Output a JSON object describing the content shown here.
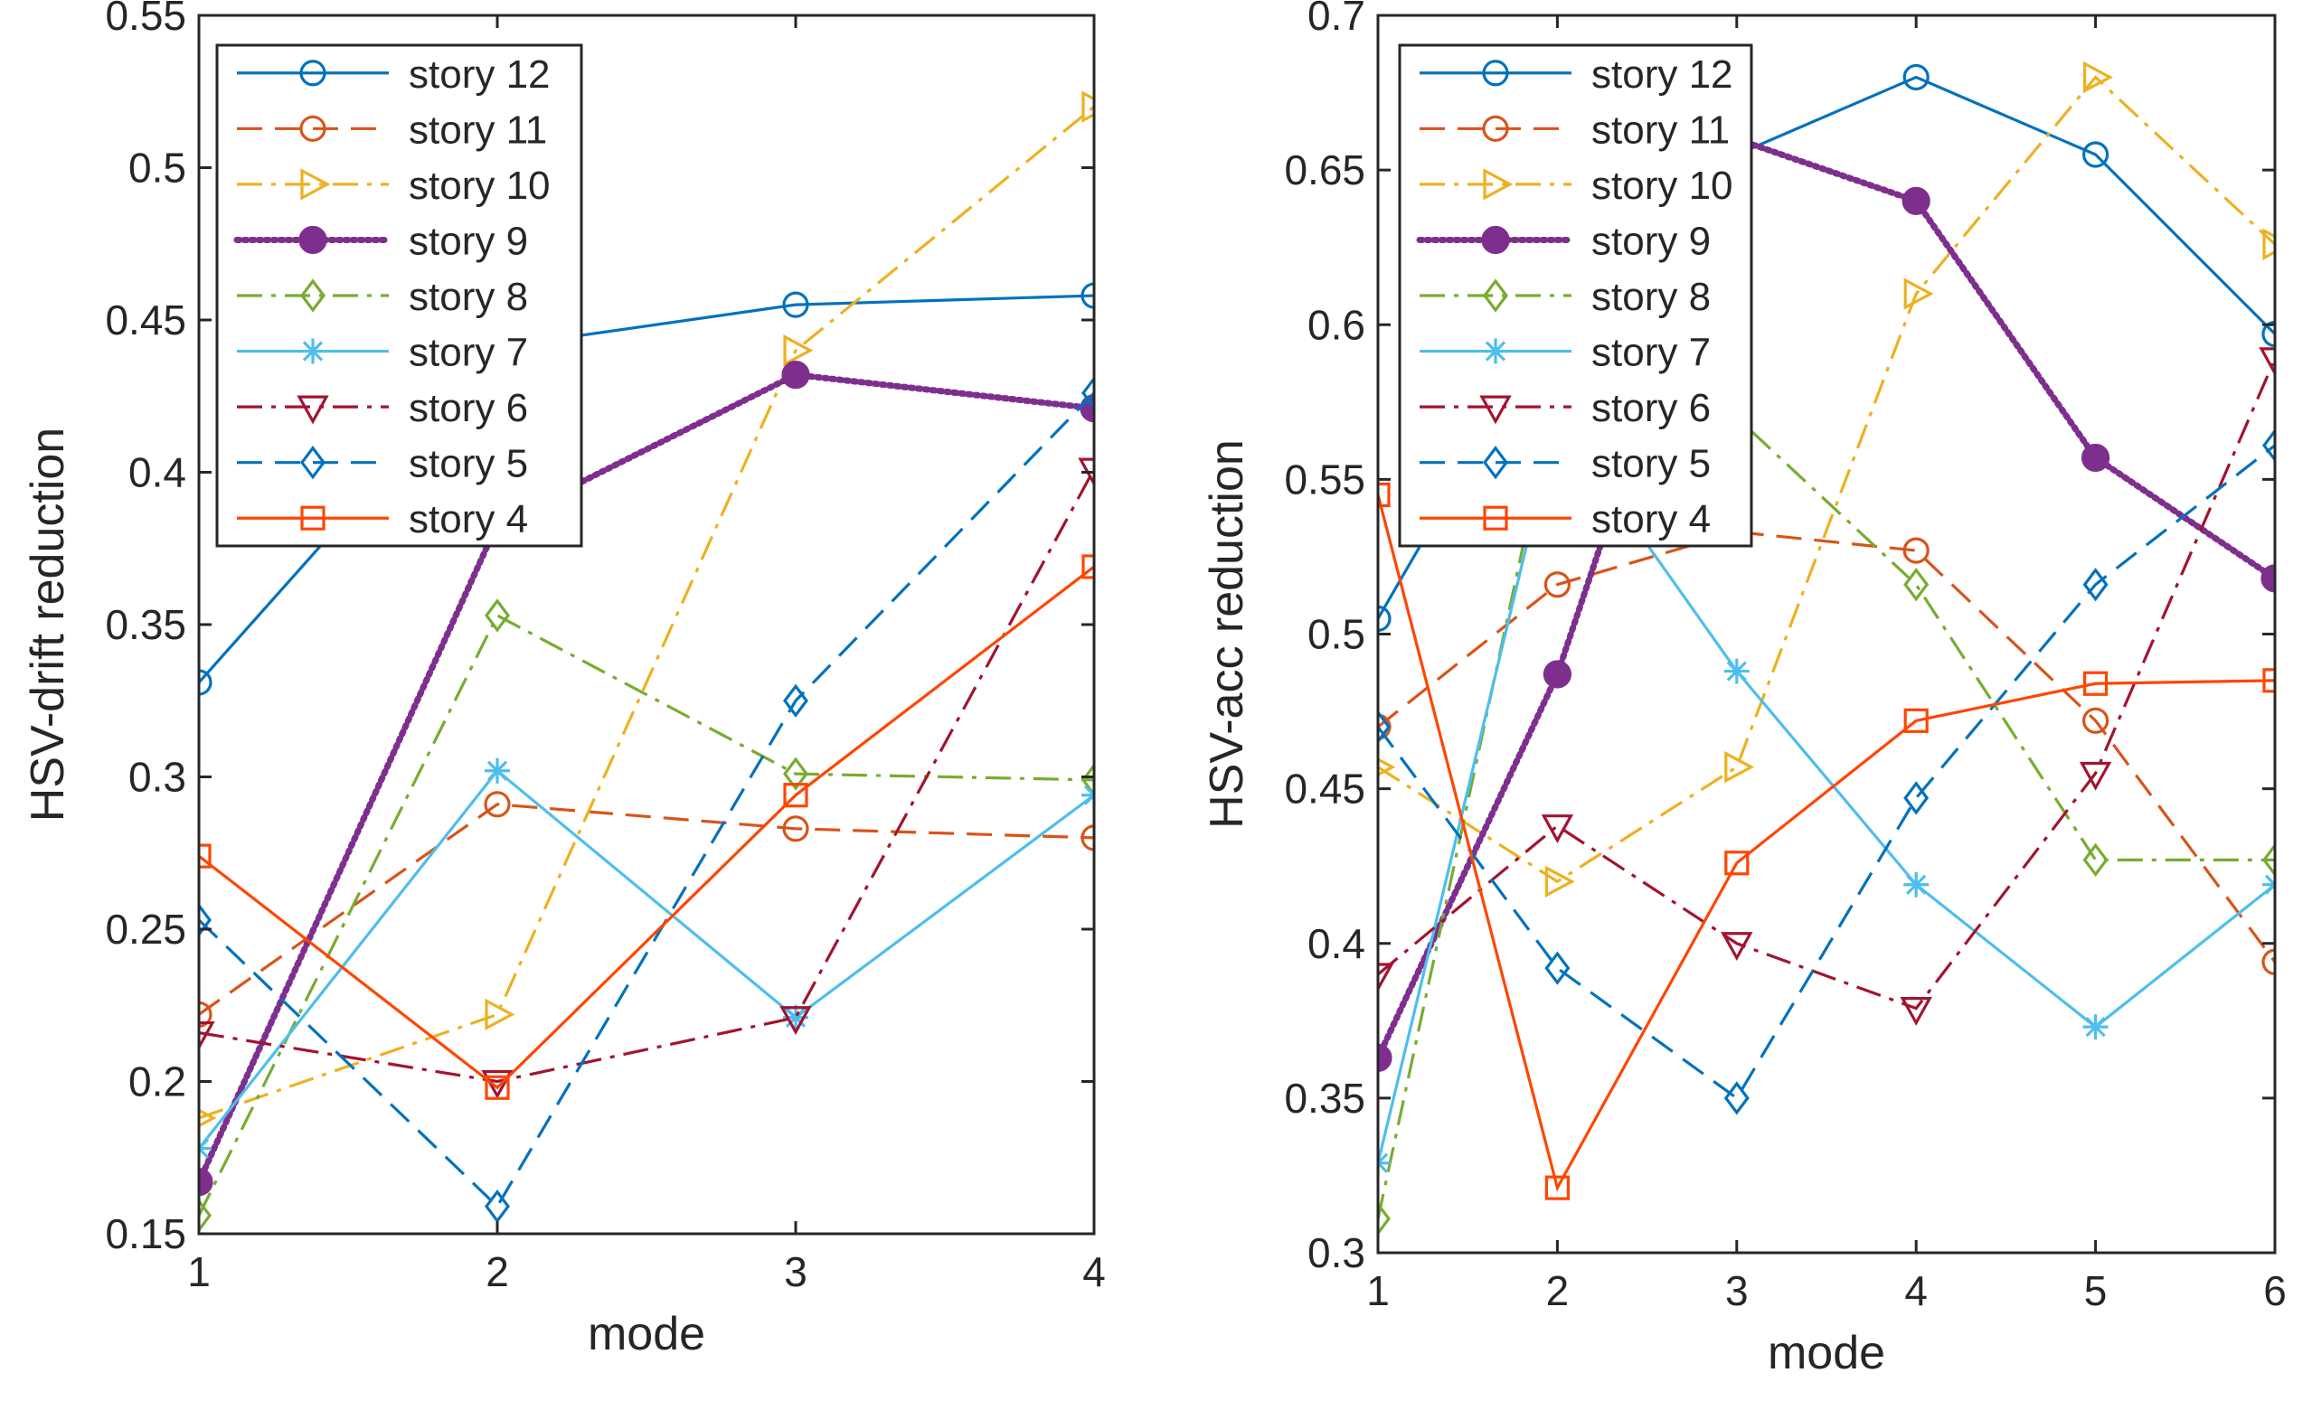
{
  "chart_data": [
    {
      "type": "line",
      "xlabel": "mode",
      "ylabel": "HSV-drift reduction",
      "xlim": [
        1,
        4
      ],
      "ylim": [
        0.15,
        0.55
      ],
      "xticks": [
        1,
        2,
        3,
        4
      ],
      "yticks": [
        0.15,
        0.2,
        0.25,
        0.3,
        0.35,
        0.4,
        0.45,
        0.5,
        0.55
      ],
      "xtick_labels": [
        "1",
        "2",
        "3",
        "4"
      ],
      "ytick_labels": [
        "0.15",
        "0.2",
        "0.25",
        "0.3",
        "0.35",
        "0.4",
        "0.45",
        "0.5",
        "0.55"
      ],
      "grid": false,
      "legend_position": "top-left",
      "x": [
        1,
        2,
        3,
        4
      ],
      "series": [
        {
          "name": "story 12",
          "values": [
            0.331,
            0.441,
            0.455,
            0.458
          ]
        },
        {
          "name": "story 11",
          "values": [
            0.222,
            0.291,
            0.283,
            0.28
          ]
        },
        {
          "name": "story 10",
          "values": [
            0.188,
            0.222,
            0.44,
            0.52
          ]
        },
        {
          "name": "story 9",
          "values": [
            0.167,
            0.383,
            0.432,
            0.421
          ]
        },
        {
          "name": "story 8",
          "values": [
            0.156,
            0.353,
            0.301,
            0.299
          ]
        },
        {
          "name": "story 7",
          "values": [
            0.178,
            0.302,
            0.221,
            0.294
          ]
        },
        {
          "name": "story 6",
          "values": [
            0.216,
            0.2,
            0.221,
            0.401
          ]
        },
        {
          "name": "story 5",
          "values": [
            0.253,
            0.159,
            0.325,
            0.426
          ]
        },
        {
          "name": "story 4",
          "values": [
            0.274,
            0.198,
            0.294,
            0.369
          ]
        }
      ]
    },
    {
      "type": "line",
      "xlabel": "mode",
      "ylabel": "HSV-acc reduction",
      "xlim": [
        1,
        6
      ],
      "ylim": [
        0.3,
        0.7
      ],
      "xticks": [
        1,
        2,
        3,
        4,
        5,
        6
      ],
      "yticks": [
        0.3,
        0.35,
        0.4,
        0.45,
        0.5,
        0.55,
        0.6,
        0.65,
        0.7
      ],
      "xtick_labels": [
        "1",
        "2",
        "3",
        "4",
        "5",
        "6"
      ],
      "ytick_labels": [
        "0.3",
        "0.35",
        "0.4",
        "0.45",
        "0.5",
        "0.55",
        "0.6",
        "0.65",
        "0.7"
      ],
      "grid": false,
      "legend_position": "top-left",
      "x": [
        1,
        2,
        3,
        4,
        5,
        6
      ],
      "series": [
        {
          "name": "story 12",
          "values": [
            0.505,
            0.605,
            0.655,
            0.68,
            0.655,
            0.597
          ]
        },
        {
          "name": "story 11",
          "values": [
            0.47,
            0.516,
            0.533,
            0.527,
            0.472,
            0.394
          ]
        },
        {
          "name": "story 10",
          "values": [
            0.457,
            0.42,
            0.457,
            0.61,
            0.68,
            0.626
          ]
        },
        {
          "name": "story 9",
          "values": [
            0.363,
            0.487,
            0.66,
            0.64,
            0.557,
            0.518
          ]
        },
        {
          "name": "story 8",
          "values": [
            0.311,
            0.58,
            0.57,
            0.516,
            0.427,
            0.427
          ]
        },
        {
          "name": "story 7",
          "values": [
            0.329,
            0.57,
            0.488,
            0.419,
            0.373,
            0.419
          ]
        },
        {
          "name": "story 6",
          "values": [
            0.39,
            0.438,
            0.4,
            0.379,
            0.455,
            0.589
          ]
        },
        {
          "name": "story 5",
          "values": [
            0.47,
            0.392,
            0.35,
            0.447,
            0.516,
            0.561
          ]
        },
        {
          "name": "story 4",
          "values": [
            0.545,
            0.321,
            0.426,
            0.472,
            0.484,
            0.485
          ]
        }
      ]
    }
  ],
  "styles": [
    {
      "color": "#0072BD",
      "dash": "",
      "marker": "circle"
    },
    {
      "color": "#D95319",
      "dash": "28,14",
      "marker": "circle"
    },
    {
      "color": "#EDB120",
      "dash": "28,10,5,10",
      "marker": "triangle-right"
    },
    {
      "color": "#7E2F8E",
      "dash": "3,5",
      "marker": "filled-circle"
    },
    {
      "color": "#77AC30",
      "dash": "28,10,5,10",
      "marker": "diamond"
    },
    {
      "color": "#4DBEEE",
      "dash": "",
      "marker": "asterisk"
    },
    {
      "color": "#A2142F",
      "dash": "28,10,5,10",
      "marker": "triangle-down"
    },
    {
      "color": "#0072BD",
      "dash": "28,14",
      "marker": "diamond"
    },
    {
      "color": "#FF4500",
      "dash": "",
      "marker": "square"
    }
  ]
}
